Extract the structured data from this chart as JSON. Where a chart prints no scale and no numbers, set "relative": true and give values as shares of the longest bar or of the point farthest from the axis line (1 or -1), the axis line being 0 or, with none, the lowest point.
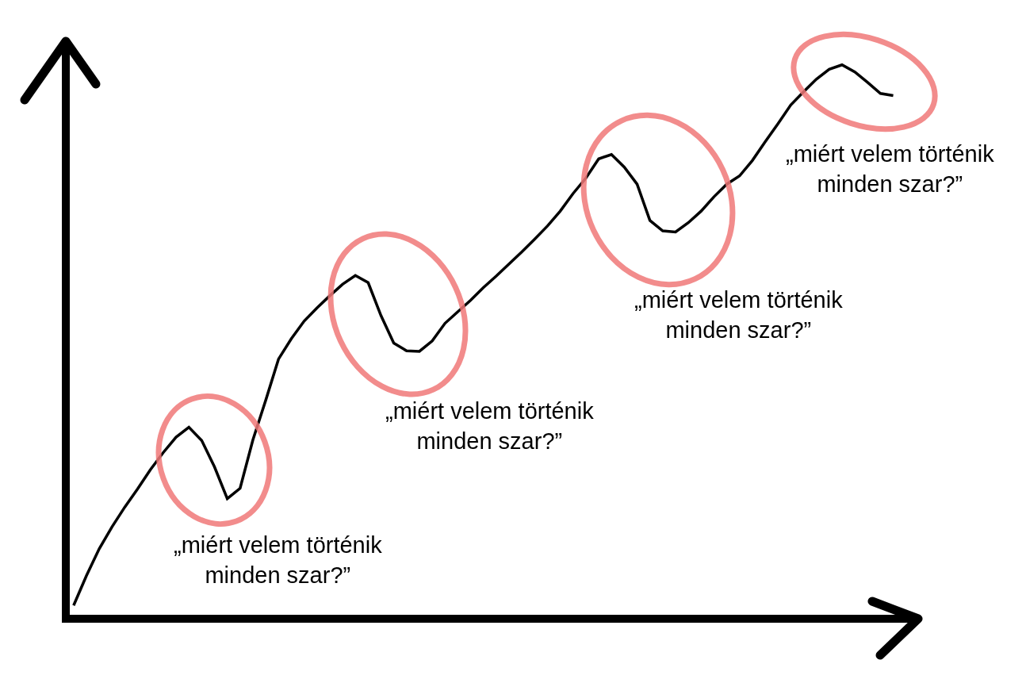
{
  "chart_data": {
    "type": "line",
    "relative": true,
    "categories": [
      null,
      null,
      null,
      null,
      null,
      null,
      null,
      null,
      null,
      null,
      null,
      null,
      null,
      null,
      null,
      null,
      null,
      null,
      null,
      null,
      null,
      null,
      null,
      null,
      null,
      null,
      null,
      null,
      null,
      null,
      null,
      null,
      null,
      null,
      null,
      null,
      null,
      null,
      null,
      null,
      null,
      null,
      null,
      null,
      null,
      null,
      null,
      null,
      null,
      null,
      null,
      null,
      null,
      null,
      null,
      null,
      null,
      null,
      null,
      null,
      null,
      null,
      null,
      null,
      null
    ],
    "series": [
      {
        "color": "#000000",
        "values": [
          0.017,
          0.071,
          0.12,
          0.16,
          0.196,
          0.229,
          0.264,
          0.295,
          0.323,
          0.341,
          0.317,
          0.269,
          0.211,
          0.23,
          0.318,
          0.39,
          0.465,
          0.502,
          0.534,
          0.558,
          0.58,
          0.601,
          0.617,
          0.604,
          0.544,
          0.494,
          0.48,
          0.479,
          0.498,
          0.53,
          0.551,
          0.572,
          0.595,
          0.616,
          0.638,
          0.66,
          0.683,
          0.707,
          0.734,
          0.766,
          0.794,
          0.829,
          0.837,
          0.814,
          0.783,
          0.717,
          0.698,
          0.696,
          0.713,
          0.734,
          0.76,
          0.783,
          0.798,
          0.826,
          0.86,
          0.893,
          0.927,
          0.951,
          0.974,
          0.992,
          1,
          0.987,
          0.968,
          0.948,
          0.944
        ]
      }
    ],
    "annotations": [
      "„miért velem történik\nminden szar?”",
      "„miért velem történik\nminden szar?”",
      "„miért velem történik\nminden szar?”",
      "„miért velem történik\nminden szar?”"
    ]
  }
}
